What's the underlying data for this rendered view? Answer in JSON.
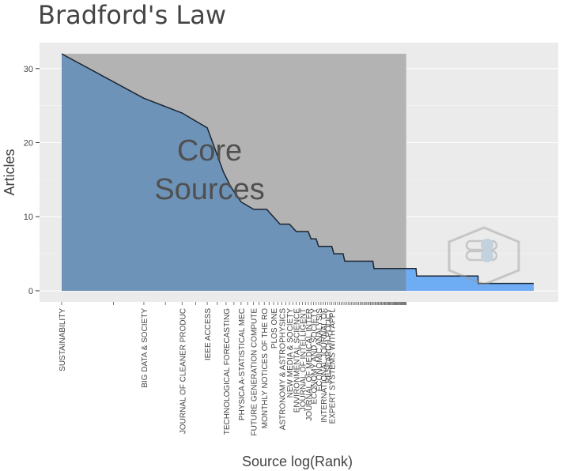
{
  "chart_data": {
    "type": "area",
    "title": "Bradford's Law",
    "xlabel": "Source log(Rank)",
    "ylabel": "Articles",
    "y_ticks": [
      0,
      10,
      20,
      30
    ],
    "ylim": [
      -1.5,
      33.5
    ],
    "x_scale": "log",
    "core_zone_label": [
      "Core",
      "Sources"
    ],
    "colors": {
      "core_fill": "#6e93b9",
      "tail_fill": "#6eacf3",
      "line": "#1b2530",
      "core_band": "#b3b3b3",
      "panel_bg": "#ebebeb",
      "grid": "#ffffff"
    },
    "core_until_rank": 100,
    "total_sources": 550,
    "profile": [
      {
        "rank": 1,
        "articles": 32
      },
      {
        "rank": 3,
        "articles": 26
      },
      {
        "rank": 5,
        "articles": 24
      },
      {
        "rank": 7,
        "articles": 22
      },
      {
        "rank": 8.7,
        "articles": 16
      },
      {
        "rank": 9.6,
        "articles": 14
      },
      {
        "rank": 11,
        "articles": 12
      },
      {
        "rank": 13,
        "articles": 11
      },
      {
        "rank": 15.5,
        "articles": 11
      },
      {
        "rank": 18.5,
        "articles": 9
      },
      {
        "rank": 21,
        "articles": 9
      },
      {
        "rank": 23,
        "articles": 8
      },
      {
        "rank": 27,
        "articles": 8
      },
      {
        "rank": 28,
        "articles": 7
      },
      {
        "rank": 30,
        "articles": 7
      },
      {
        "rank": 31,
        "articles": 6
      },
      {
        "rank": 37,
        "articles": 6
      },
      {
        "rank": 38,
        "articles": 5
      },
      {
        "rank": 43,
        "articles": 5
      },
      {
        "rank": 44,
        "articles": 4
      },
      {
        "rank": 64,
        "articles": 4
      },
      {
        "rank": 65,
        "articles": 3
      },
      {
        "rank": 114,
        "articles": 3
      },
      {
        "rank": 115,
        "articles": 2
      },
      {
        "rank": 261,
        "articles": 2
      },
      {
        "rank": 262,
        "articles": 1
      },
      {
        "rank": 550,
        "articles": 1
      }
    ],
    "labeled_sources": [
      {
        "rank": 1,
        "name": "SUSTAINABILITY"
      },
      {
        "rank": 3,
        "name": "BIG DATA & SOCIETY"
      },
      {
        "rank": 5,
        "name": "JOURNAL OF CLEANER PRODUC"
      },
      {
        "rank": 7,
        "name": "IEEE ACCESS"
      },
      {
        "rank": 9,
        "name": "TECHNOLOGICAL FORECASTING"
      },
      {
        "rank": 11,
        "name": "PHYSICA A-STATISTICAL MEC"
      },
      {
        "rank": 13,
        "name": "FUTURE GENERATION COMPUTE"
      },
      {
        "rank": 15,
        "name": "MONTHLY NOTICES OF THE RO"
      },
      {
        "rank": 17,
        "name": "PLOS ONE"
      },
      {
        "rank": 19,
        "name": "ASTRONOMY & ASTROPHYSICS"
      },
      {
        "rank": 21,
        "name": "NEW MEDIA & SOCIETY"
      },
      {
        "rank": 23,
        "name": "ENVIRONMENTAL SCIENCE"
      },
      {
        "rank": 25,
        "name": "JOURNAL OF INTELLIGENT"
      },
      {
        "rank": 27,
        "name": "JOURNAL OF MEDICAL INTER"
      },
      {
        "rank": 29,
        "name": "ECONOMY AND SOCIETY"
      },
      {
        "rank": 31,
        "name": "ECONOMIC ANALYSIS"
      },
      {
        "rank": 33,
        "name": "INTERNATIONAL JOURNAL OF"
      },
      {
        "rank": 35,
        "name": "RESEARCH POLICY"
      },
      {
        "rank": 37,
        "name": "EXPERT SYSTEMS WITH APPL"
      }
    ]
  }
}
